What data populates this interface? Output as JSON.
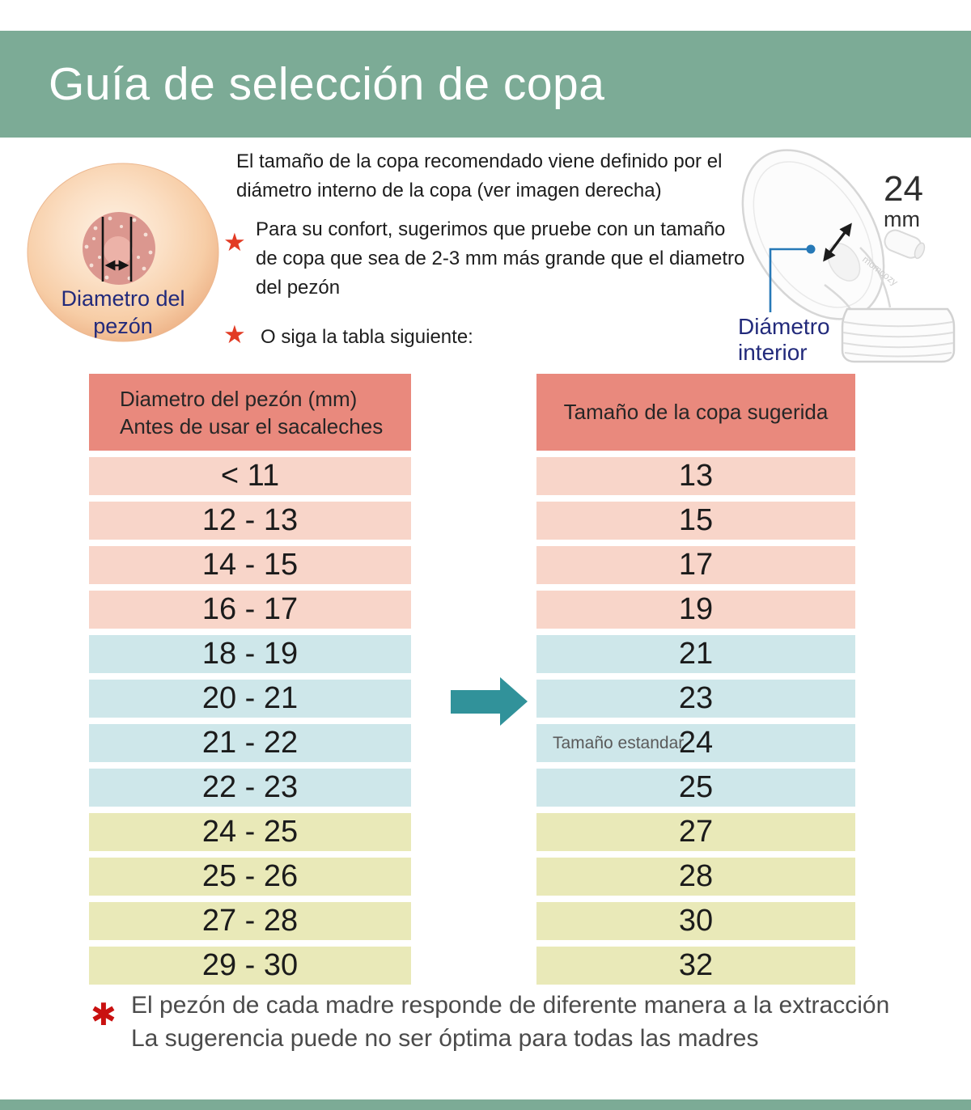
{
  "header": {
    "title": "Guía de selección de copa"
  },
  "icons": {
    "star": "★",
    "asterisk": "✱"
  },
  "intro": {
    "paragraph": "El tamaño de la copa recomendado viene definido por el\ndiámetro interno de la copa (ver imagen derecha)",
    "bullet1": "Para su confort, sugerimos que pruebe con un tamaño\nde copa que sea de 2-3 mm más grande que el diametro\ndel pezón",
    "bullet2": "O siga la tabla siguiente:"
  },
  "nipple_diagram": {
    "label": "Diametro del\npezón"
  },
  "flange_diagram": {
    "size_value": "24",
    "size_unit": "mm",
    "label": "Diámetro\ninterior",
    "watermark": "momcozy"
  },
  "table": {
    "left_header": "Diametro del pezón (mm)\nAntes de usar el sacaleches",
    "right_header": "Tamaño de la copa sugerida",
    "standard_label": "Tamaño estandar",
    "rows": [
      {
        "nipple": "< 11",
        "cup": "13",
        "group": "pink"
      },
      {
        "nipple": "12 - 13",
        "cup": "15",
        "group": "pink"
      },
      {
        "nipple": "14 - 15",
        "cup": "17",
        "group": "pink"
      },
      {
        "nipple": "16 - 17",
        "cup": "19",
        "group": "pink"
      },
      {
        "nipple": "18 - 19",
        "cup": "21",
        "group": "blue"
      },
      {
        "nipple": "20 - 21",
        "cup": "23",
        "group": "blue",
        "arrow": true
      },
      {
        "nipple": "21 - 22",
        "cup": "24",
        "group": "blue",
        "standard": true
      },
      {
        "nipple": "22 - 23",
        "cup": "25",
        "group": "blue"
      },
      {
        "nipple": "24 - 25",
        "cup": "27",
        "group": "yellow"
      },
      {
        "nipple": "25 - 26",
        "cup": "28",
        "group": "yellow"
      },
      {
        "nipple": "27 - 28",
        "cup": "30",
        "group": "yellow"
      },
      {
        "nipple": "29 - 30",
        "cup": "32",
        "group": "yellow"
      }
    ]
  },
  "footnote": {
    "line1": "El pezón de cada madre responde de diferente manera a la extracción",
    "line2": "La sugerencia puede no ser óptima para todas las madres"
  },
  "colors": {
    "header_green": "#7cab96",
    "table_header_salmon": "#e9897d",
    "row_pink": "#f8d5c9",
    "row_blue": "#cee7ea",
    "row_yellow": "#e9e9b8",
    "arrow_teal": "#31929a",
    "accent_navy": "#222a7b",
    "star_red": "#e23b24",
    "footnote_red": "#c91110"
  }
}
